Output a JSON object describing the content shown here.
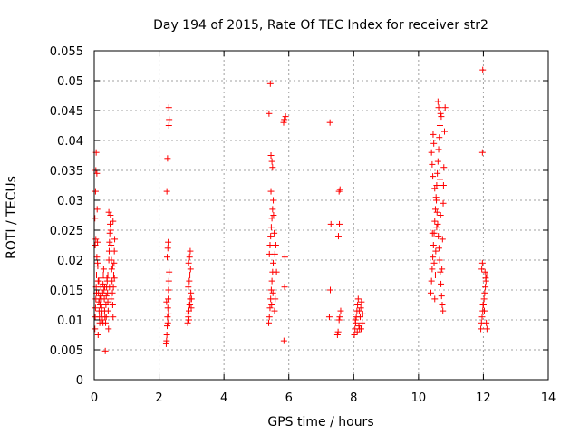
{
  "chart_data": {
    "type": "scatter",
    "title": "Day 194 of 2015, Rate Of TEC Index for receiver str2",
    "xlabel": "GPS time / hours",
    "ylabel": "ROTI / TECUs",
    "xlim": [
      0,
      14
    ],
    "ylim": [
      0,
      0.055
    ],
    "xticks": [
      0,
      2,
      4,
      6,
      8,
      10,
      12,
      14
    ],
    "xtick_labels": [
      "0",
      "2",
      "4",
      "6",
      "8",
      "10",
      "12",
      "14"
    ],
    "yticks": [
      0,
      0.005,
      0.01,
      0.015,
      0.02,
      0.025,
      0.03,
      0.035,
      0.04,
      0.045,
      0.05,
      0.055
    ],
    "ytick_labels": [
      "0",
      "0.005",
      "0.01",
      "0.015",
      "0.02",
      "0.025",
      "0.03",
      "0.035",
      "0.04",
      "0.045",
      "0.05",
      "0.055"
    ],
    "grid": true,
    "marker": "+",
    "marker_color": "#ff0000",
    "series": [
      {
        "name": "ROTI",
        "points": [
          [
            0.02,
            0.0085
          ],
          [
            0.03,
            0.0105
          ],
          [
            0.04,
            0.012
          ],
          [
            0.05,
            0.0135
          ],
          [
            0.06,
            0.0155
          ],
          [
            0.07,
            0.0175
          ],
          [
            0.03,
            0.0225
          ],
          [
            0.05,
            0.0235
          ],
          [
            0.02,
            0.027
          ],
          [
            0.04,
            0.0315
          ],
          [
            0.05,
            0.035
          ],
          [
            0.06,
            0.038
          ],
          [
            0.08,
            0.0345
          ],
          [
            0.09,
            0.0285
          ],
          [
            0.1,
            0.023
          ],
          [
            0.08,
            0.0205
          ],
          [
            0.11,
            0.019
          ],
          [
            0.12,
            0.0165
          ],
          [
            0.13,
            0.0145
          ],
          [
            0.14,
            0.013
          ],
          [
            0.15,
            0.0115
          ],
          [
            0.16,
            0.0105
          ],
          [
            0.17,
            0.0095
          ],
          [
            0.18,
            0.0125
          ],
          [
            0.19,
            0.014
          ],
          [
            0.2,
            0.0155
          ],
          [
            0.21,
            0.017
          ],
          [
            0.22,
            0.0135
          ],
          [
            0.23,
            0.012
          ],
          [
            0.24,
            0.011
          ],
          [
            0.25,
            0.01
          ],
          [
            0.26,
            0.0145
          ],
          [
            0.27,
            0.016
          ],
          [
            0.28,
            0.0175
          ],
          [
            0.29,
            0.0185
          ],
          [
            0.3,
            0.015
          ],
          [
            0.31,
            0.0135
          ],
          [
            0.32,
            0.0115
          ],
          [
            0.33,
            0.0105
          ],
          [
            0.34,
            0.0048
          ],
          [
            0.35,
            0.0095
          ],
          [
            0.36,
            0.0125
          ],
          [
            0.37,
            0.014
          ],
          [
            0.38,
            0.0155
          ],
          [
            0.39,
            0.017
          ],
          [
            0.4,
            0.0165
          ],
          [
            0.41,
            0.0145
          ],
          [
            0.42,
            0.013
          ],
          [
            0.43,
            0.0115
          ],
          [
            0.44,
            0.0085
          ],
          [
            0.45,
            0.02
          ],
          [
            0.46,
            0.0215
          ],
          [
            0.47,
            0.023
          ],
          [
            0.48,
            0.0245
          ],
          [
            0.49,
            0.026
          ],
          [
            0.5,
            0.0275
          ],
          [
            0.51,
            0.025
          ],
          [
            0.52,
            0.0225
          ],
          [
            0.53,
            0.02
          ],
          [
            0.54,
            0.0185
          ],
          [
            0.55,
            0.0165
          ],
          [
            0.56,
            0.0145
          ],
          [
            0.57,
            0.0125
          ],
          [
            0.58,
            0.0105
          ],
          [
            0.59,
            0.0155
          ],
          [
            0.6,
            0.0175
          ],
          [
            0.61,
            0.0195
          ],
          [
            0.62,
            0.0215
          ],
          [
            0.63,
            0.0235
          ],
          [
            0.58,
            0.0265
          ],
          [
            0.45,
            0.028
          ],
          [
            0.12,
            0.0075
          ],
          [
            0.1,
            0.0195
          ],
          [
            0.07,
            0.0145
          ],
          [
            0.14,
            0.0165
          ],
          [
            0.17,
            0.0135
          ],
          [
            0.22,
            0.0115
          ],
          [
            0.27,
            0.0095
          ],
          [
            0.32,
            0.0155
          ],
          [
            0.37,
            0.0105
          ],
          [
            0.42,
            0.0175
          ],
          [
            0.47,
            0.0155
          ],
          [
            0.52,
            0.0135
          ],
          [
            0.57,
            0.019
          ],
          [
            0.62,
            0.017
          ],
          [
            2.22,
            0.006
          ],
          [
            2.23,
            0.0065
          ],
          [
            2.24,
            0.0075
          ],
          [
            2.25,
            0.009
          ],
          [
            2.26,
            0.0105
          ],
          [
            2.27,
            0.012
          ],
          [
            2.28,
            0.0135
          ],
          [
            2.29,
            0.015
          ],
          [
            2.3,
            0.0165
          ],
          [
            2.31,
            0.018
          ],
          [
            2.25,
            0.0205
          ],
          [
            2.27,
            0.022
          ],
          [
            2.28,
            0.023
          ],
          [
            2.24,
            0.0315
          ],
          [
            2.26,
            0.037
          ],
          [
            2.3,
            0.0425
          ],
          [
            2.31,
            0.0435
          ],
          [
            2.3,
            0.0455
          ],
          [
            2.29,
            0.011
          ],
          [
            2.27,
            0.0095
          ],
          [
            2.23,
            0.013
          ],
          [
            2.88,
            0.0095
          ],
          [
            2.9,
            0.0105
          ],
          [
            2.92,
            0.0115
          ],
          [
            2.94,
            0.0125
          ],
          [
            2.96,
            0.0135
          ],
          [
            2.98,
            0.0145
          ],
          [
            2.9,
            0.0155
          ],
          [
            2.93,
            0.0165
          ],
          [
            2.95,
            0.0175
          ],
          [
            2.97,
            0.0185
          ],
          [
            2.91,
            0.0195
          ],
          [
            2.94,
            0.0205
          ],
          [
            2.96,
            0.0215
          ],
          [
            2.89,
            0.011
          ],
          [
            2.99,
            0.012
          ],
          [
            3.0,
            0.0135
          ],
          [
            2.92,
            0.01
          ],
          [
            2.95,
            0.0125
          ],
          [
            5.38,
            0.0095
          ],
          [
            5.4,
            0.0105
          ],
          [
            5.42,
            0.012
          ],
          [
            5.44,
            0.0135
          ],
          [
            5.46,
            0.015
          ],
          [
            5.48,
            0.0165
          ],
          [
            5.5,
            0.018
          ],
          [
            5.52,
            0.0195
          ],
          [
            5.4,
            0.021
          ],
          [
            5.42,
            0.0225
          ],
          [
            5.44,
            0.024
          ],
          [
            5.46,
            0.0255
          ],
          [
            5.48,
            0.027
          ],
          [
            5.5,
            0.0285
          ],
          [
            5.52,
            0.03
          ],
          [
            5.45,
            0.0315
          ],
          [
            5.55,
            0.0245
          ],
          [
            5.57,
            0.021
          ],
          [
            5.58,
            0.0135
          ],
          [
            5.56,
            0.0115
          ],
          [
            5.45,
            0.0375
          ],
          [
            5.48,
            0.0365
          ],
          [
            5.5,
            0.0355
          ],
          [
            5.39,
            0.0445
          ],
          [
            5.43,
            0.0495
          ],
          [
            5.53,
            0.0275
          ],
          [
            5.6,
            0.0225
          ],
          [
            5.62,
            0.018
          ],
          [
            5.47,
            0.0125
          ],
          [
            5.51,
            0.0145
          ],
          [
            5.85,
            0.0065
          ],
          [
            5.87,
            0.0155
          ],
          [
            5.88,
            0.0205
          ],
          [
            5.84,
            0.043
          ],
          [
            5.9,
            0.044
          ],
          [
            5.86,
            0.0435
          ],
          [
            7.25,
            0.0105
          ],
          [
            7.28,
            0.015
          ],
          [
            7.3,
            0.026
          ],
          [
            7.27,
            0.043
          ],
          [
            7.5,
            0.0075
          ],
          [
            7.52,
            0.008
          ],
          [
            7.55,
            0.01
          ],
          [
            7.57,
            0.0105
          ],
          [
            7.6,
            0.0115
          ],
          [
            7.53,
            0.024
          ],
          [
            7.56,
            0.026
          ],
          [
            7.55,
            0.0315
          ],
          [
            7.58,
            0.0318
          ],
          [
            8.02,
            0.0075
          ],
          [
            8.04,
            0.0085
          ],
          [
            8.06,
            0.0095
          ],
          [
            8.08,
            0.0105
          ],
          [
            8.1,
            0.0115
          ],
          [
            8.12,
            0.0125
          ],
          [
            8.14,
            0.0135
          ],
          [
            8.16,
            0.009
          ],
          [
            8.18,
            0.0085
          ],
          [
            8.2,
            0.0105
          ],
          [
            8.22,
            0.012
          ],
          [
            8.24,
            0.013
          ],
          [
            8.26,
            0.0095
          ],
          [
            8.28,
            0.011
          ],
          [
            8.05,
            0.01
          ],
          [
            8.11,
            0.008
          ],
          [
            8.17,
            0.0115
          ],
          [
            8.23,
            0.0085
          ],
          [
            10.38,
            0.0145
          ],
          [
            10.4,
            0.0165
          ],
          [
            10.42,
            0.0185
          ],
          [
            10.44,
            0.0205
          ],
          [
            10.46,
            0.0225
          ],
          [
            10.48,
            0.0245
          ],
          [
            10.5,
            0.0265
          ],
          [
            10.52,
            0.0285
          ],
          [
            10.54,
            0.0305
          ],
          [
            10.56,
            0.0325
          ],
          [
            10.58,
            0.0345
          ],
          [
            10.6,
            0.0365
          ],
          [
            10.62,
            0.0385
          ],
          [
            10.64,
            0.0405
          ],
          [
            10.66,
            0.0425
          ],
          [
            10.68,
            0.0445
          ],
          [
            10.6,
            0.0465
          ],
          [
            10.62,
            0.0455
          ],
          [
            10.7,
            0.044
          ],
          [
            10.45,
            0.041
          ],
          [
            10.47,
            0.0395
          ],
          [
            10.4,
            0.038
          ],
          [
            10.42,
            0.036
          ],
          [
            10.44,
            0.034
          ],
          [
            10.5,
            0.032
          ],
          [
            10.55,
            0.03
          ],
          [
            10.57,
            0.028
          ],
          [
            10.59,
            0.026
          ],
          [
            10.61,
            0.024
          ],
          [
            10.63,
            0.022
          ],
          [
            10.65,
            0.02
          ],
          [
            10.67,
            0.018
          ],
          [
            10.69,
            0.016
          ],
          [
            10.71,
            0.014
          ],
          [
            10.73,
            0.0125
          ],
          [
            10.75,
            0.0115
          ],
          [
            10.72,
            0.0185
          ],
          [
            10.74,
            0.0235
          ],
          [
            10.76,
            0.0295
          ],
          [
            10.78,
            0.0355
          ],
          [
            10.8,
            0.0415
          ],
          [
            10.82,
            0.0455
          ],
          [
            10.5,
            0.0135
          ],
          [
            10.53,
            0.0215
          ],
          [
            10.56,
            0.0255
          ],
          [
            10.48,
            0.0195
          ],
          [
            10.66,
            0.0335
          ],
          [
            10.68,
            0.0275
          ],
          [
            10.77,
            0.0325
          ],
          [
            10.43,
            0.0245
          ],
          [
            10.52,
            0.0175
          ],
          [
            11.92,
            0.0085
          ],
          [
            11.94,
            0.0095
          ],
          [
            11.96,
            0.0105
          ],
          [
            11.98,
            0.0115
          ],
          [
            12.0,
            0.0125
          ],
          [
            12.02,
            0.0135
          ],
          [
            12.04,
            0.0145
          ],
          [
            12.06,
            0.0155
          ],
          [
            12.08,
            0.0165
          ],
          [
            12.1,
            0.0175
          ],
          [
            11.95,
            0.0185
          ],
          [
            11.97,
            0.0195
          ],
          [
            12.05,
            0.018
          ],
          [
            12.07,
            0.017
          ],
          [
            12.09,
            0.0095
          ],
          [
            12.11,
            0.0085
          ],
          [
            11.99,
            0.0125
          ],
          [
            12.03,
            0.0115
          ],
          [
            11.97,
            0.038
          ],
          [
            11.98,
            0.0518
          ]
        ]
      }
    ]
  }
}
